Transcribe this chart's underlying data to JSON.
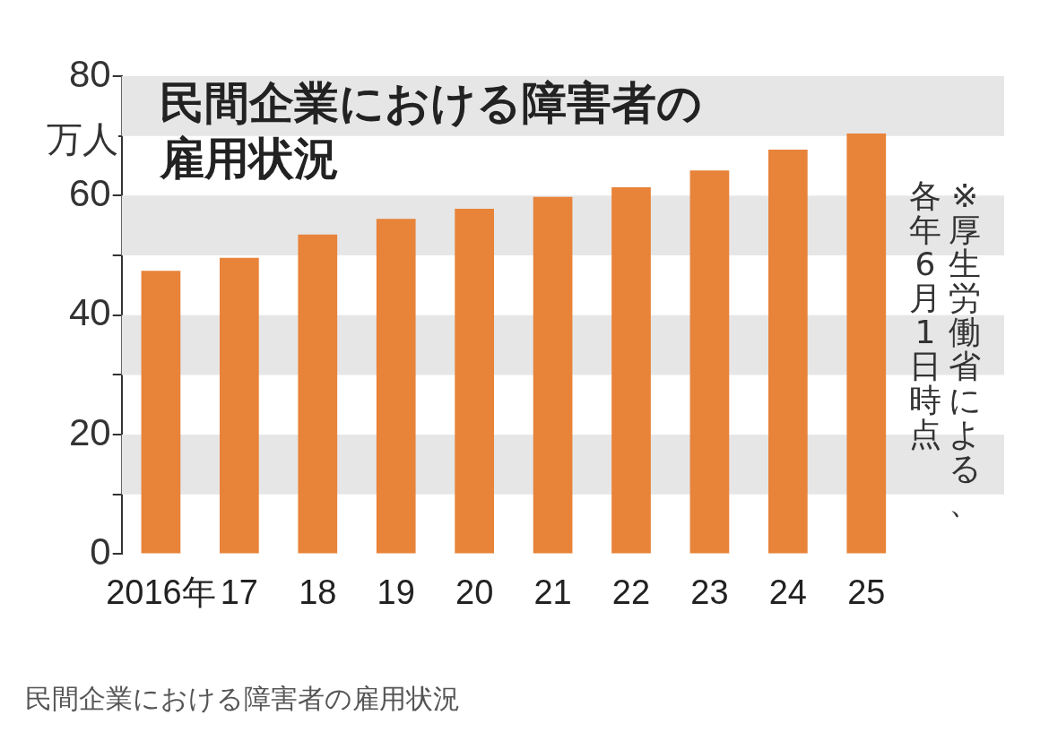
{
  "chart_data": {
    "type": "bar",
    "title": "民間企業における障害者の雇用状況",
    "ylabel": "万人",
    "categories": [
      "2016年",
      "17",
      "18",
      "19",
      "20",
      "21",
      "22",
      "23",
      "24",
      "25"
    ],
    "values": [
      47.4,
      49.6,
      53.5,
      56.1,
      57.8,
      59.8,
      61.4,
      64.2,
      67.7,
      70.4
    ],
    "color": "#e8833a",
    "ylim": [
      0,
      80
    ],
    "yticks": [
      0,
      {
        "value": 10,
        "label": null
      },
      20,
      {
        "value": 30,
        "label": null
      },
      40,
      {
        "value": 50,
        "label": null
      },
      60,
      {
        "value": 70,
        "label": null
      },
      80
    ],
    "bands": [
      {
        "axis": "y",
        "from": 10,
        "to": 20,
        "color": "#e6e6e6"
      },
      {
        "axis": "y",
        "from": 30,
        "to": 40,
        "color": "#e6e6e6"
      },
      {
        "axis": "y",
        "from": 50,
        "to": 60,
        "color": "#e6e6e6"
      },
      {
        "axis": "y",
        "from": 70,
        "to": 80,
        "color": "#e6e6e6"
      }
    ],
    "grid": false,
    "legend": false,
    "annotations": [
      "※厚生労働省による、",
      "各年6月1日時点",
      "民間企業における障害者の雇用状況"
    ]
  }
}
